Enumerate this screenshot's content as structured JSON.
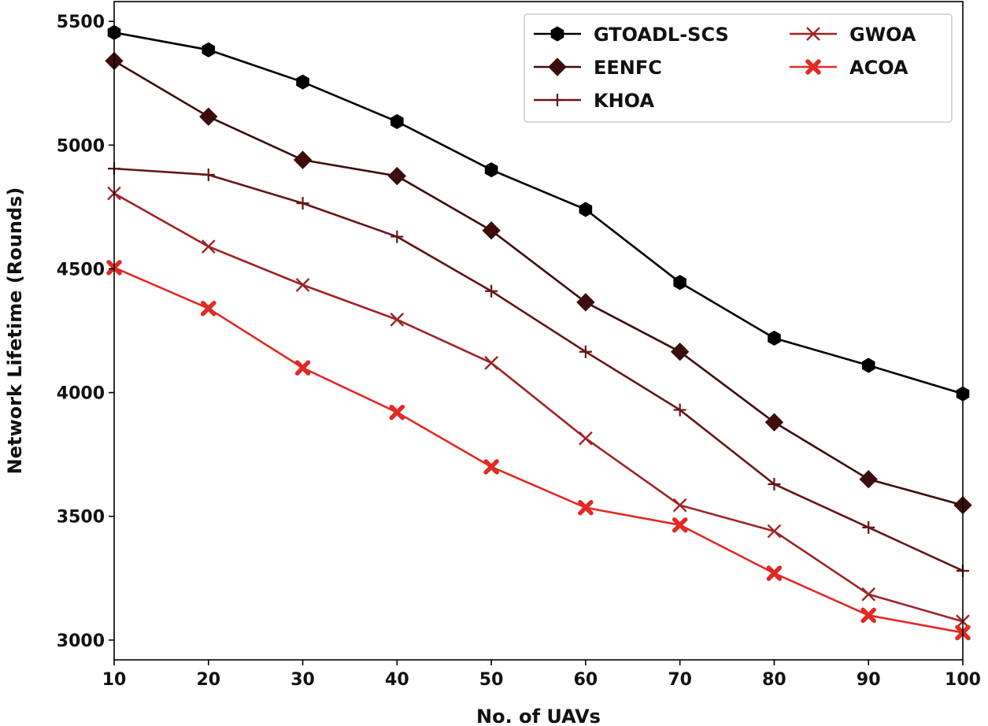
{
  "chart_data": {
    "type": "line",
    "title": "",
    "xlabel": "No. of UAVs",
    "ylabel": "Network Lifetime (Rounds)",
    "xlim": [
      10,
      100
    ],
    "ylim": [
      2920,
      5580
    ],
    "xticks": [
      10,
      20,
      30,
      40,
      50,
      60,
      70,
      80,
      90,
      100
    ],
    "yticks": [
      3000,
      3500,
      4000,
      4500,
      5000,
      5500
    ],
    "grid": false,
    "legend_position": "top-right",
    "legend_columns": 2,
    "x": [
      10,
      20,
      30,
      40,
      50,
      60,
      70,
      80,
      90,
      100
    ],
    "series": [
      {
        "name": "GTOADL-SCS",
        "color": "#000000",
        "marker": "hexagon",
        "values": [
          5455,
          5385,
          5255,
          5095,
          4900,
          4740,
          4445,
          4220,
          4110,
          3995
        ]
      },
      {
        "name": "EENFC",
        "color": "#3d0d0d",
        "marker": "diamond",
        "values": [
          5340,
          5115,
          4940,
          4875,
          4655,
          4365,
          4165,
          3880,
          3650,
          3545
        ]
      },
      {
        "name": "KHOA",
        "color": "#661515",
        "marker": "plus",
        "values": [
          4905,
          4880,
          4765,
          4630,
          4410,
          4165,
          3930,
          3630,
          3455,
          3280
        ]
      },
      {
        "name": "GWOA",
        "color": "#9e2424",
        "marker": "x",
        "values": [
          4805,
          4590,
          4435,
          4295,
          4120,
          3815,
          3545,
          3440,
          3185,
          3075
        ]
      },
      {
        "name": "ACOA",
        "color": "#e12a24",
        "marker": "x-filled",
        "values": [
          4505,
          4340,
          4100,
          3920,
          3700,
          3535,
          3465,
          3270,
          3100,
          3030
        ]
      }
    ]
  }
}
